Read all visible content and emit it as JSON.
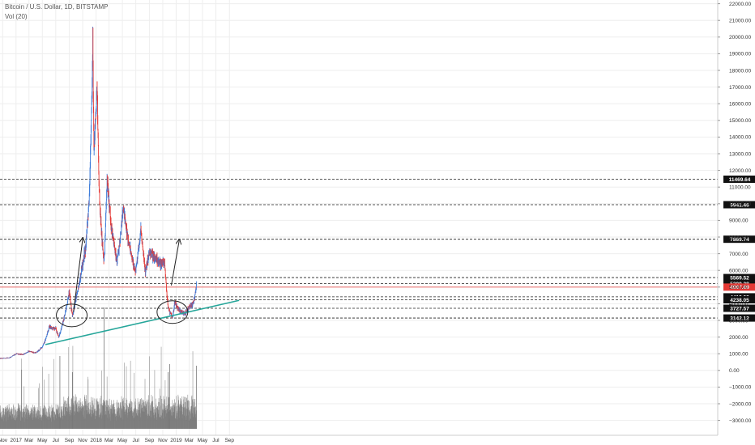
{
  "header": {
    "title": "Bitcoin / U.S. Dollar, 1D, BITSTAMP",
    "volume_label": "Vol (20)"
  },
  "chart_data": {
    "type": "candlestick",
    "title": "Bitcoin / U.S. Dollar, 1D, BITSTAMP",
    "x_tick_labels": [
      "Nov",
      "2017",
      "Mar",
      "May",
      "Jul",
      "Sep",
      "Nov",
      "2018",
      "Mar",
      "May",
      "Jul",
      "Sep",
      "Nov",
      "2019",
      "Mar",
      "May",
      "Jul",
      "Sep"
    ],
    "y_tick_labels": [
      "22000.00",
      "21000.00",
      "20000.00",
      "19000.00",
      "18000.00",
      "17000.00",
      "16000.00",
      "15000.00",
      "14000.00",
      "13000.00",
      "12000.00",
      "11000.00",
      "10000.00",
      "9000.00",
      "8000.00",
      "7000.00",
      "6000.00",
      "5000.00",
      "4000.00",
      "3000.00",
      "2000.00",
      "1000.00",
      "0.00",
      "−1000.00",
      "−2000.00",
      "−3000.00"
    ],
    "price_path": [
      [
        "2016-11-01",
        720
      ],
      [
        "2016-12-01",
        750
      ],
      [
        "2017-01-01",
        1000
      ],
      [
        "2017-02-01",
        950
      ],
      [
        "2017-03-01",
        1150
      ],
      [
        "2017-04-01",
        1050
      ],
      [
        "2017-05-01",
        1400
      ],
      [
        "2017-06-01",
        2600
      ],
      [
        "2017-07-01",
        2500
      ],
      [
        "2017-07-15",
        2000
      ],
      [
        "2017-08-01",
        2800
      ],
      [
        "2017-09-01",
        4800
      ],
      [
        "2017-09-15",
        3300
      ],
      [
        "2017-10-01",
        4300
      ],
      [
        "2017-11-01",
        6400
      ],
      [
        "2017-11-15",
        7500
      ],
      [
        "2017-12-01",
        10500
      ],
      [
        "2017-12-17",
        19600
      ],
      [
        "2017-12-22",
        13500
      ],
      [
        "2018-01-06",
        17000
      ],
      [
        "2018-01-17",
        10000
      ],
      [
        "2018-02-06",
        6500
      ],
      [
        "2018-02-20",
        11500
      ],
      [
        "2018-03-10",
        8800
      ],
      [
        "2018-04-06",
        6500
      ],
      [
        "2018-05-05",
        9800
      ],
      [
        "2018-06-01",
        7500
      ],
      [
        "2018-06-29",
        5900
      ],
      [
        "2018-07-24",
        8400
      ],
      [
        "2018-08-14",
        6000
      ],
      [
        "2018-09-01",
        7100
      ],
      [
        "2018-10-15",
        6500
      ],
      [
        "2018-11-10",
        6400
      ],
      [
        "2018-11-25",
        3800
      ],
      [
        "2018-12-15",
        3200
      ],
      [
        "2018-12-25",
        4100
      ],
      [
        "2019-01-15",
        3600
      ],
      [
        "2019-02-08",
        3400
      ],
      [
        "2019-03-01",
        3800
      ],
      [
        "2019-03-20",
        4000
      ],
      [
        "2019-04-02",
        4900
      ],
      [
        "2019-04-04",
        5209.28
      ]
    ],
    "horizontal_levels": [
      {
        "value": 11469.64,
        "label": "11469.64"
      },
      {
        "value": 9941.46,
        "label": "9941.46"
      },
      {
        "value": 7869.74,
        "label": "7869.74"
      },
      {
        "value": 5569.52,
        "label": "5569.52"
      },
      {
        "value": 5209.28,
        "label": "5209.28"
      },
      {
        "value": 4997.89,
        "label": "4997.89"
      },
      {
        "value": 4413.08,
        "label": "4413.08"
      },
      {
        "value": 4238.05,
        "label": "4238.05"
      },
      {
        "value": 3727.57,
        "label": "3727.57"
      },
      {
        "value": 3142.12,
        "label": "3142.12"
      }
    ],
    "current_price": 4997.89,
    "trendline": {
      "start": [
        "2017-05-15",
        1550
      ],
      "end": [
        "2019-10-15",
        4200
      ],
      "color": "#26a69a"
    },
    "annotations": [
      {
        "type": "ellipse",
        "center": [
          "2017-09-12",
          3300
        ]
      },
      {
        "type": "arrow",
        "from": [
          "2017-09-20",
          3500
        ],
        "to": [
          "2017-11-01",
          7900
        ]
      },
      {
        "type": "ellipse",
        "center": [
          "2018-12-15",
          3500
        ]
      },
      {
        "type": "arrow",
        "from": [
          "2018-12-10",
          5100
        ],
        "to": [
          "2019-01-15",
          7800
        ]
      }
    ],
    "colors": {
      "up": "#3d7bd9",
      "down": "#e53935",
      "volume": "#777777",
      "grid": "#eeeeee",
      "level": "#222222",
      "current_price_bg": "#e53935"
    },
    "grid": true
  }
}
